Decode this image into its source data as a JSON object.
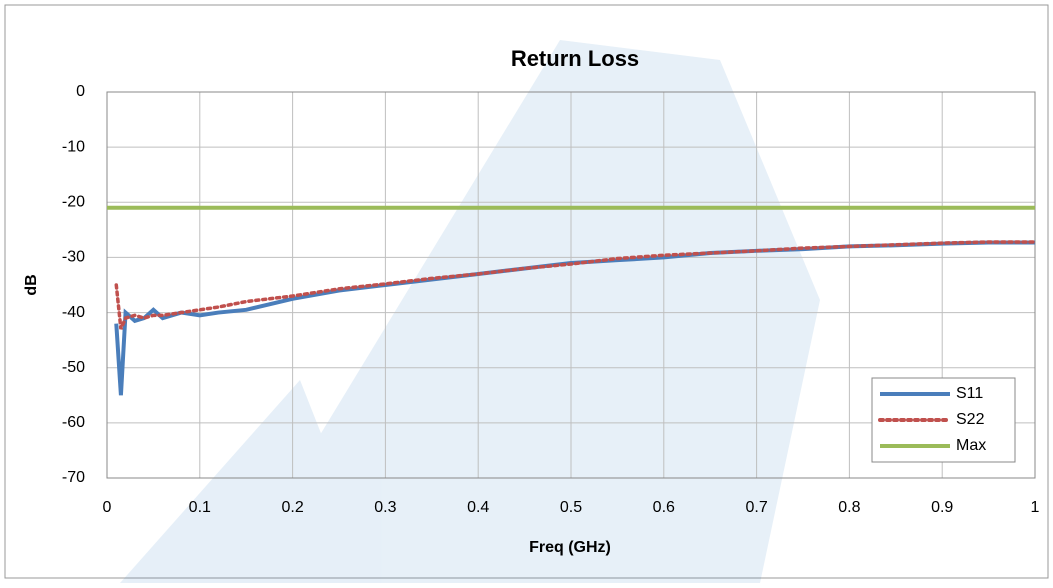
{
  "chart_data": {
    "type": "line",
    "title": "Return Loss",
    "x_label": "Freq (GHz)",
    "y_label": "dB",
    "x": [
      0.01,
      0.015,
      0.02,
      0.03,
      0.04,
      0.05,
      0.06,
      0.08,
      0.1,
      0.12,
      0.15,
      0.2,
      0.25,
      0.3,
      0.35,
      0.4,
      0.45,
      0.5,
      0.55,
      0.6,
      0.65,
      0.7,
      0.75,
      0.8,
      0.85,
      0.9,
      0.95,
      1.0
    ],
    "series": [
      {
        "name": "S11",
        "color": "#4a7ebb",
        "style": "solid",
        "values": [
          -42,
          -55,
          -40,
          -41.5,
          -41,
          -39.5,
          -41,
          -40,
          -40.5,
          -40,
          -39.5,
          -37.5,
          -36,
          -35,
          -34,
          -33,
          -32,
          -31,
          -30.5,
          -30,
          -29.2,
          -28.8,
          -28.5,
          -28,
          -27.8,
          -27.5,
          -27.3,
          -27.3
        ]
      },
      {
        "name": "S22",
        "color": "#c0504d",
        "style": "dotted",
        "values": [
          -35,
          -43,
          -41,
          -40.5,
          -41,
          -40.5,
          -40.5,
          -40,
          -39.5,
          -39,
          -38,
          -37,
          -35.7,
          -34.8,
          -33.8,
          -33,
          -32,
          -31.2,
          -30.2,
          -29.6,
          -29.2,
          -28.8,
          -28.3,
          -28,
          -27.7,
          -27.4,
          -27.2,
          -27.2
        ]
      },
      {
        "name": "Max",
        "color": "#9bbb59",
        "style": "solid",
        "x": [
          0,
          1
        ],
        "values": [
          -21,
          -21
        ]
      }
    ],
    "xlim": [
      0,
      1
    ],
    "xticks": [
      0,
      0.1,
      0.2,
      0.3,
      0.4,
      0.5,
      0.6,
      0.7,
      0.8,
      0.9,
      1
    ],
    "ylim": [
      -70,
      0
    ],
    "yticks": [
      0,
      -10,
      -20,
      -30,
      -40,
      -50,
      -60,
      -70
    ],
    "grid": true,
    "legend": "lower right"
  }
}
